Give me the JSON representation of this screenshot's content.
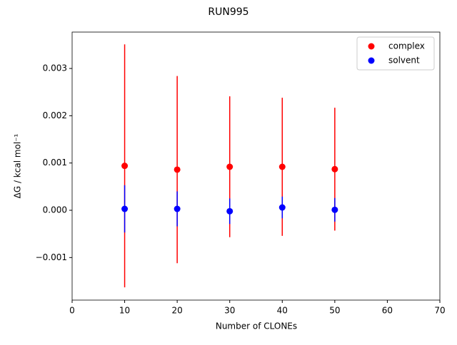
{
  "chart_data": {
    "type": "errorbar",
    "title": "RUN995",
    "xlabel": "Number of CLONEs",
    "ylabel": "ΔG / kcal mol⁻¹",
    "x": [
      10,
      20,
      30,
      40,
      50
    ],
    "series": [
      {
        "name": "complex",
        "color": "#ff0000",
        "values": [
          0.00094,
          0.00086,
          0.00092,
          0.00092,
          0.00087
        ],
        "errors": [
          0.00257,
          0.00198,
          0.00149,
          0.00146,
          0.0013
        ]
      },
      {
        "name": "solvent",
        "color": "#0000ff",
        "values": [
          3e-05,
          3e-05,
          -2e-05,
          6e-05,
          1e-05
        ],
        "errors": [
          0.0005,
          0.00037,
          0.00027,
          0.00023,
          0.00025
        ]
      }
    ],
    "xlim": [
      0,
      70
    ],
    "xticks": [
      0,
      10,
      20,
      30,
      40,
      50,
      60,
      70
    ],
    "ylim": [
      -0.0019,
      0.00377
    ],
    "yticks": [
      {
        "value": -0.001,
        "label": "−0.001"
      },
      {
        "value": 0,
        "label": "0.000"
      },
      {
        "value": 0.001,
        "label": "0.001"
      },
      {
        "value": 0.002,
        "label": "0.002"
      },
      {
        "value": 0.003,
        "label": "0.003"
      }
    ],
    "legend": "upper right"
  }
}
